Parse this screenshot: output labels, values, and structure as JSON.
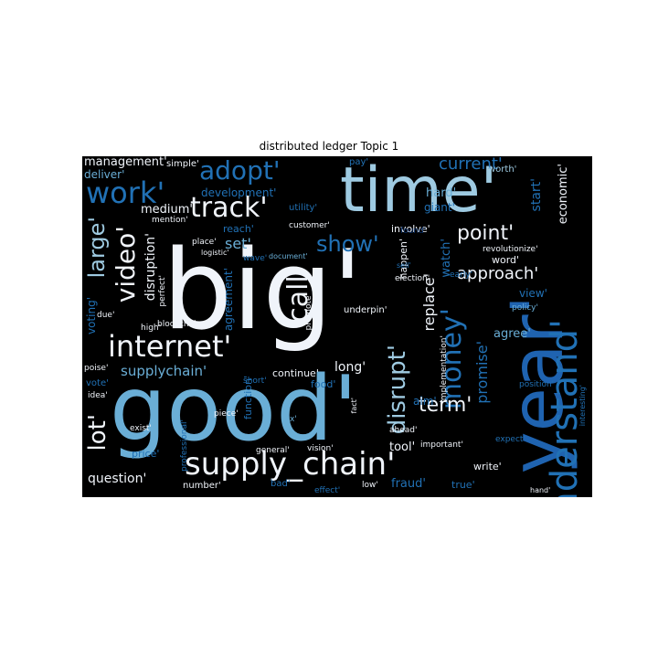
{
  "figure": {
    "title": "distributed ledger Topic 1"
  },
  "colors": {
    "background": "#000000",
    "white": "#f0f4fa",
    "light_blue": "#6aaed6",
    "mid_blue": "#2171b5",
    "dark_blue": "#084594"
  },
  "words": {
    "big": "big'",
    "good": "good'",
    "time": "time'",
    "year": "year'",
    "supply_chain": "supply_chain'",
    "internet": "internet'",
    "understand": "understand'",
    "track": "track'",
    "adopt": "adopt'",
    "work": "work'",
    "show": "show'",
    "money": "money'",
    "disrupt": "disrupt'",
    "video": "video'",
    "large": "large'",
    "call": "call'",
    "point": "point'",
    "lot": "lot'",
    "term": "term'",
    "approach": "approach'",
    "current": "current'",
    "management": "management'",
    "deliver": "deliver'",
    "simple": "simple'",
    "development": "development'",
    "medium": "medium'",
    "mention": "mention'",
    "set": "set'",
    "disruption": "disruption'",
    "utility": "utility'",
    "hard": "hard'",
    "giant": "giant'",
    "customer": "customer'",
    "involve": "involve'",
    "found": "found'",
    "pay": "pay'",
    "worth": "worth'",
    "start": "start'",
    "economic": "economic'",
    "reach": "reach'",
    "place": "place'",
    "logistic": "logistic'",
    "revolutionize": "revolutionize'",
    "word": "word'",
    "wave": "wave'",
    "document": "document'",
    "agreement": "agreement'",
    "happen": "happen'",
    "watch": "watch'",
    "sell": "sell'",
    "election": "election'",
    "early": "early'",
    "view": "view'",
    "policy": "policy'",
    "replace": "replace'",
    "voting": "voting'",
    "due": "due'",
    "perfect": "perfect'",
    "high": "high'",
    "blockchainpic": "blockchainpic'",
    "promote": "promote'",
    "underpin": "underpin'",
    "agree": "agree'",
    "implementation": "implementation'",
    "poise": "poise'",
    "supplychain": "supplychain'",
    "love": "love'",
    "long": "long'",
    "vote": "vote'",
    "short": "short'",
    "continue": "continue'",
    "food": "food'",
    "promise": "promise'",
    "aim": "aim'",
    "position": "position'",
    "idea": "idea'",
    "exist": "exist'",
    "piece": "piece'",
    "function": "function'",
    "tax": "tax'",
    "fact": "fact'",
    "interesting": "interesting'",
    "ahead": "ahead'",
    "tool": "tool'",
    "expect": "expect'",
    "professional": "professional'",
    "general": "general'",
    "vision": "vision'",
    "important": "important'",
    "price": "price'",
    "question": "question'",
    "number": "number'",
    "bad": "bad'",
    "effect": "effect'",
    "low": "low'",
    "true": "true'",
    "fraud": "fraud'",
    "write": "write'",
    "hand": "hand'"
  }
}
